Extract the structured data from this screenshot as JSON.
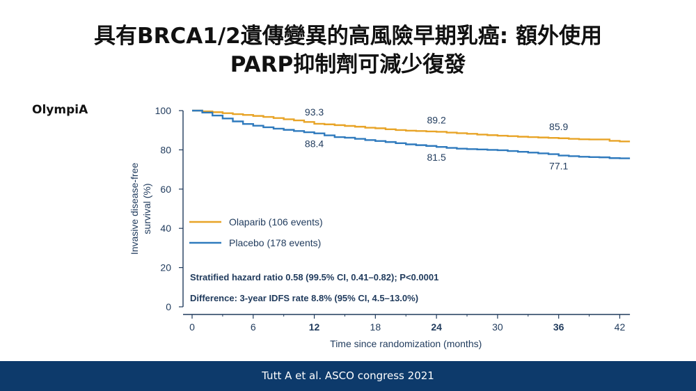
{
  "slide": {
    "title_line1": "具有BRCA1/2遺傳變異的高風險早期乳癌: 額外使用",
    "title_line2": "PARP抑制劑可減少復發",
    "study_label": "OlympiA",
    "citation": "Tutt A et al. ASCO congress 2021"
  },
  "colors": {
    "olaparib": "#e8a427",
    "placebo": "#2f7abd",
    "text": "#1f3a5c",
    "footer_bg": "#0d3a6b"
  },
  "chart_data": {
    "type": "line",
    "xlabel": "Time since randomization (months)",
    "ylabel": "Invasive disease-free survival (%)",
    "xlim": [
      0,
      43
    ],
    "ylim": [
      0,
      100
    ],
    "xticks": [
      0,
      6,
      12,
      18,
      24,
      30,
      36,
      42
    ],
    "xticks_bold": [
      12,
      24,
      36
    ],
    "yticks": [
      0,
      20,
      40,
      60,
      80,
      100
    ],
    "grid": false,
    "legend_position": "middle-left",
    "series": [
      {
        "name": "Olaparib (106 events)",
        "color": "#e8a427",
        "x": [
          0,
          1,
          2,
          3,
          4,
          5,
          6,
          7,
          8,
          9,
          10,
          11,
          12,
          13,
          14,
          15,
          16,
          17,
          18,
          19,
          20,
          21,
          22,
          23,
          24,
          25,
          26,
          27,
          28,
          29,
          30,
          31,
          32,
          33,
          34,
          35,
          36,
          37,
          38,
          39,
          40,
          41,
          42,
          43
        ],
        "y": [
          100,
          99.6,
          99.2,
          98.7,
          98.2,
          97.8,
          97.3,
          96.8,
          96.2,
          95.6,
          95.0,
          94.2,
          93.3,
          93.0,
          92.6,
          92.2,
          91.8,
          91.3,
          91.0,
          90.5,
          90.1,
          89.8,
          89.6,
          89.4,
          89.2,
          88.8,
          88.5,
          88.2,
          87.8,
          87.5,
          87.2,
          87.0,
          86.7,
          86.5,
          86.3,
          86.1,
          85.9,
          85.6,
          85.4,
          85.3,
          85.3,
          84.6,
          84.3,
          84.3
        ]
      },
      {
        "name": "Placebo (178 events)",
        "color": "#2f7abd",
        "x": [
          0,
          1,
          2,
          3,
          4,
          5,
          6,
          7,
          8,
          9,
          10,
          11,
          12,
          13,
          14,
          15,
          16,
          17,
          18,
          19,
          20,
          21,
          22,
          23,
          24,
          25,
          26,
          27,
          28,
          29,
          30,
          31,
          32,
          33,
          34,
          35,
          36,
          37,
          38,
          39,
          40,
          41,
          42,
          43
        ],
        "y": [
          100,
          99.0,
          97.5,
          96.0,
          94.5,
          93.2,
          92.3,
          91.5,
          90.8,
          90.2,
          89.6,
          89.0,
          88.4,
          87.4,
          86.5,
          86.2,
          85.6,
          85.0,
          84.5,
          84.0,
          83.4,
          82.8,
          82.4,
          82.0,
          81.5,
          81.0,
          80.6,
          80.4,
          80.2,
          80.0,
          79.8,
          79.4,
          79.0,
          78.6,
          78.2,
          77.8,
          77.1,
          76.8,
          76.5,
          76.3,
          76.2,
          75.8,
          75.7,
          75.7
        ]
      }
    ],
    "annotations": [
      {
        "text": "93.3",
        "x": 12,
        "y": 93.3,
        "series": "olaparib",
        "placement": "above"
      },
      {
        "text": "88.4",
        "x": 12,
        "y": 88.4,
        "series": "placebo",
        "placement": "below"
      },
      {
        "text": "89.2",
        "x": 24,
        "y": 89.2,
        "series": "olaparib",
        "placement": "above"
      },
      {
        "text": "81.5",
        "x": 24,
        "y": 81.5,
        "series": "placebo",
        "placement": "below"
      },
      {
        "text": "85.9",
        "x": 36,
        "y": 85.9,
        "series": "olaparib",
        "placement": "above"
      },
      {
        "text": "77.1",
        "x": 36,
        "y": 77.1,
        "series": "placebo",
        "placement": "below"
      }
    ],
    "stats": [
      "Stratified hazard ratio 0.58 (99.5% CI, 0.41–0.82); P<0.0001",
      "Difference: 3-year IDFS rate  8.8% (95% CI, 4.5–13.0%)"
    ]
  }
}
